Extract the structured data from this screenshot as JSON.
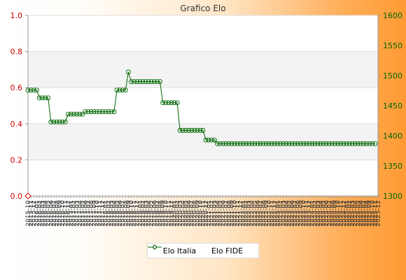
{
  "chart_data": {
    "type": "line",
    "title": "Grafico Elo",
    "x_labels": [
      "2015-10",
      "2015-11",
      "2015-12",
      "2016-01",
      "2016-02",
      "2016-03",
      "2016-04",
      "2016-05",
      "2016-06",
      "2016-07",
      "2016-08",
      "2016-09",
      "2016-10",
      "2016-11",
      "2016-12",
      "2017-01",
      "2017-02",
      "2017-03",
      "2017-04",
      "2017-05",
      "2017-06",
      "2017-07",
      "2017-08",
      "2017-09",
      "2017-10",
      "2017-11",
      "2017-12",
      "2018-01",
      "2018-02",
      "2018-03",
      "2018-04",
      "2018-05",
      "2018-06",
      "2018-07",
      "2018-08",
      "2018-09",
      "2018-10",
      "2018-11",
      "2018-12",
      "2019-01",
      "2019-02",
      "2019-03",
      "2019-04",
      "2019-05",
      "2019-06",
      "2019-07",
      "2019-08",
      "2019-09",
      "2019-10",
      "2019-11",
      "2019-12",
      "2020-01",
      "2020-02",
      "2020-03",
      "2020-04",
      "2020-05",
      "2020-06",
      "2020-07",
      "2020-08",
      "2020-09",
      "2020-10",
      "2020-11",
      "2020-12",
      "2021-01",
      "2021-02",
      "2021-03",
      "2021-04",
      "2021-05",
      "2021-06",
      "2021-07",
      "2021-08",
      "2021-09",
      "2021-10",
      "2021-11",
      "2021-12",
      "2022-01",
      "2022-02",
      "2022-03",
      "2022-04",
      "2022-05",
      "2022-06",
      "2022-07",
      "2022-08",
      "2022-09",
      "2022-10",
      "2022-11",
      "2022-12",
      "2023-01",
      "2023-02",
      "2023-03",
      "2023-04",
      "2023-05",
      "2023-06",
      "2023-07",
      "2023-08",
      "2023-09",
      "2023-10",
      "2023-11",
      "2023-12",
      "2024-01",
      "2024-02",
      "2024-03",
      "2024-04",
      "2024-05",
      "2024-06",
      "2024-07",
      "2024-08",
      "2024-09",
      "2024-10",
      "2024-11",
      "2024-12",
      "2025-01",
      "2025-02",
      "2025-03",
      "2025-04",
      "2025-05",
      "2025-06",
      "2025-07",
      "2025-08",
      "2025-09",
      "2025-10",
      "2025-11",
      "2025-12"
    ],
    "y_left": {
      "ticks": [
        "0.0",
        "0.2",
        "0.4",
        "0.6",
        "0.8",
        "1.0"
      ],
      "min": 0,
      "max": 1
    },
    "y_right": {
      "ticks": [
        "1300",
        "1350",
        "1400",
        "1450",
        "1500",
        "1550",
        "1600"
      ],
      "min": 1300,
      "max": 1600
    },
    "grid": true,
    "legend_position": "bottom",
    "series": [
      {
        "name": "Elo Italia",
        "axis": "left",
        "color": "#cc0000",
        "values": [
          0
        ]
      },
      {
        "name": "Elo FIDE",
        "axis": "right",
        "color": "#006600",
        "values": [
          1476,
          1476,
          1476,
          1476,
          1463,
          1463,
          1463,
          1463,
          1423,
          1423,
          1423,
          1423,
          1423,
          1423,
          1436,
          1436,
          1436,
          1436,
          1436,
          1436,
          1440,
          1440,
          1440,
          1440,
          1440,
          1440,
          1440,
          1440,
          1440,
          1440,
          1440,
          1476,
          1476,
          1476,
          1476,
          1506,
          1490,
          1490,
          1490,
          1490,
          1490,
          1490,
          1490,
          1490,
          1490,
          1490,
          1490,
          1455,
          1455,
          1455,
          1455,
          1455,
          1455,
          1409,
          1409,
          1409,
          1409,
          1409,
          1409,
          1409,
          1409,
          1409,
          1393,
          1393,
          1393,
          1393,
          1387,
          1387,
          1387,
          1387,
          1387,
          1387,
          1387,
          1387,
          1387,
          1387,
          1387,
          1387,
          1387,
          1387,
          1387,
          1387,
          1387,
          1387,
          1387,
          1387,
          1387,
          1387,
          1387,
          1387,
          1387,
          1387,
          1387,
          1387,
          1387,
          1387,
          1387,
          1387,
          1387,
          1387,
          1387,
          1387,
          1387,
          1387,
          1387,
          1387,
          1387,
          1387,
          1387,
          1387,
          1387,
          1387,
          1387,
          1387,
          1387,
          1387,
          1387,
          1387,
          1387,
          1387,
          1387,
          1387
        ]
      }
    ]
  }
}
